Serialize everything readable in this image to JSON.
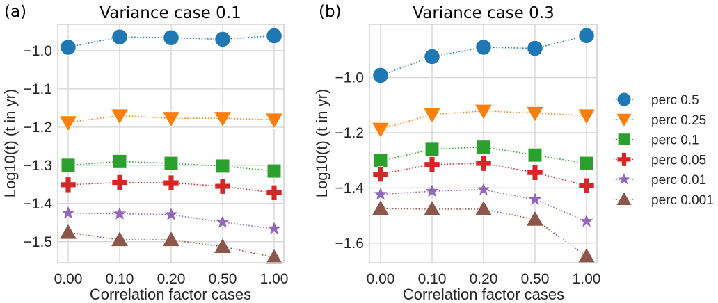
{
  "chart_data": [
    {
      "type": "line",
      "panel_tag": "(a)",
      "title": "Variance case 0.1",
      "xlabel": "Correlation factor cases",
      "ylabel": "Log10(t) (t in yr)",
      "categories": [
        "0.00",
        "0.10",
        "0.20",
        "0.50",
        "1.00"
      ],
      "yticks": [
        -1.0,
        -1.1,
        -1.2,
        -1.3,
        -1.4,
        -1.5
      ],
      "ytick_labels": [
        "−1.0",
        "−1.1",
        "−1.2",
        "−1.3",
        "−1.4",
        "−1.5"
      ],
      "ylim": [
        -1.555,
        -0.931
      ],
      "grid": true,
      "series": [
        {
          "name": "perc 0.5",
          "marker": "circle",
          "color": "#1f77b4",
          "values": [
            -0.991,
            -0.964,
            -0.966,
            -0.97,
            -0.961
          ]
        },
        {
          "name": "perc 0.25",
          "marker": "triangle-down",
          "color": "#ff7f0e",
          "values": [
            -1.188,
            -1.17,
            -1.177,
            -1.177,
            -1.181
          ]
        },
        {
          "name": "perc 0.1",
          "marker": "square",
          "color": "#2ca02c",
          "values": [
            -1.3,
            -1.29,
            -1.295,
            -1.302,
            -1.315
          ]
        },
        {
          "name": "perc 0.05",
          "marker": "plus",
          "color": "#d62728",
          "values": [
            -1.351,
            -1.345,
            -1.346,
            -1.355,
            -1.372
          ]
        },
        {
          "name": "perc 0.01",
          "marker": "star",
          "color": "#9467bd",
          "values": [
            -1.425,
            -1.427,
            -1.429,
            -1.449,
            -1.466
          ]
        },
        {
          "name": "perc 0.001",
          "marker": "triangle-up",
          "color": "#8c564b",
          "values": [
            -1.476,
            -1.495,
            -1.495,
            -1.513,
            -1.541
          ]
        }
      ]
    },
    {
      "type": "line",
      "panel_tag": "(b)",
      "title": "Variance case 0.3",
      "xlabel": "Correlation factor cases",
      "ylabel": "Log10(t) (t in yr)",
      "categories": [
        "0.00",
        "0.10",
        "0.20",
        "0.50",
        "1.00"
      ],
      "yticks": [
        -1.0,
        -1.2,
        -1.4,
        -1.6
      ],
      "ytick_labels": [
        "−1.0",
        "−1.2",
        "−1.4",
        "−1.6"
      ],
      "ylim": [
        -1.671,
        -0.807
      ],
      "grid": true,
      "legend": "right",
      "series": [
        {
          "name": "perc 0.5",
          "marker": "circle",
          "color": "#1f77b4",
          "values": [
            -0.992,
            -0.924,
            -0.89,
            -0.894,
            -0.848
          ]
        },
        {
          "name": "perc 0.25",
          "marker": "triangle-down",
          "color": "#ff7f0e",
          "values": [
            -1.187,
            -1.134,
            -1.121,
            -1.129,
            -1.138
          ]
        },
        {
          "name": "perc 0.1",
          "marker": "square",
          "color": "#2ca02c",
          "values": [
            -1.302,
            -1.26,
            -1.252,
            -1.281,
            -1.311
          ]
        },
        {
          "name": "perc 0.05",
          "marker": "plus",
          "color": "#d62728",
          "values": [
            -1.35,
            -1.315,
            -1.311,
            -1.344,
            -1.392
          ]
        },
        {
          "name": "perc 0.01",
          "marker": "star",
          "color": "#9467bd",
          "values": [
            -1.423,
            -1.412,
            -1.406,
            -1.442,
            -1.521
          ]
        },
        {
          "name": "perc 0.001",
          "marker": "triangle-up",
          "color": "#8c564b",
          "values": [
            -1.475,
            -1.477,
            -1.477,
            -1.514,
            -1.648
          ]
        }
      ]
    }
  ],
  "legend": {
    "entries": [
      "perc 0.5",
      "perc 0.25",
      "perc 0.1",
      "perc 0.05",
      "perc 0.01",
      "perc 0.001"
    ]
  }
}
